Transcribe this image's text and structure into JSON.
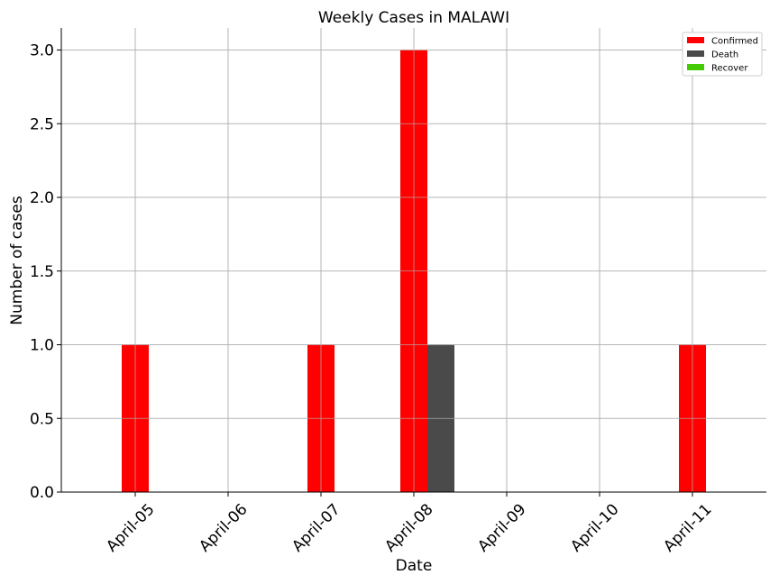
{
  "chart_data": {
    "type": "bar",
    "title": "Weekly Cases in MALAWI",
    "xlabel": "Date",
    "ylabel": "Number of cases",
    "categories": [
      "April-05",
      "April-06",
      "April-07",
      "April-08",
      "April-09",
      "April-10",
      "April-11"
    ],
    "series": [
      {
        "name": "Confirmed",
        "color": "#ff0000",
        "values": [
          1,
          0,
          1,
          3,
          0,
          0,
          1
        ]
      },
      {
        "name": "Death",
        "color": "#4a4a4a",
        "values": [
          0,
          0,
          0,
          1,
          0,
          0,
          0
        ]
      },
      {
        "name": "Recover",
        "color": "#44cc00",
        "values": [
          0,
          0,
          0,
          0,
          0,
          0,
          0
        ]
      }
    ],
    "ylim": [
      0,
      3.15
    ],
    "yticks": [
      "0.0",
      "0.5",
      "1.0",
      "1.5",
      "2.0",
      "2.5",
      "3.0"
    ],
    "grid": true,
    "legend_position": "top-right"
  }
}
